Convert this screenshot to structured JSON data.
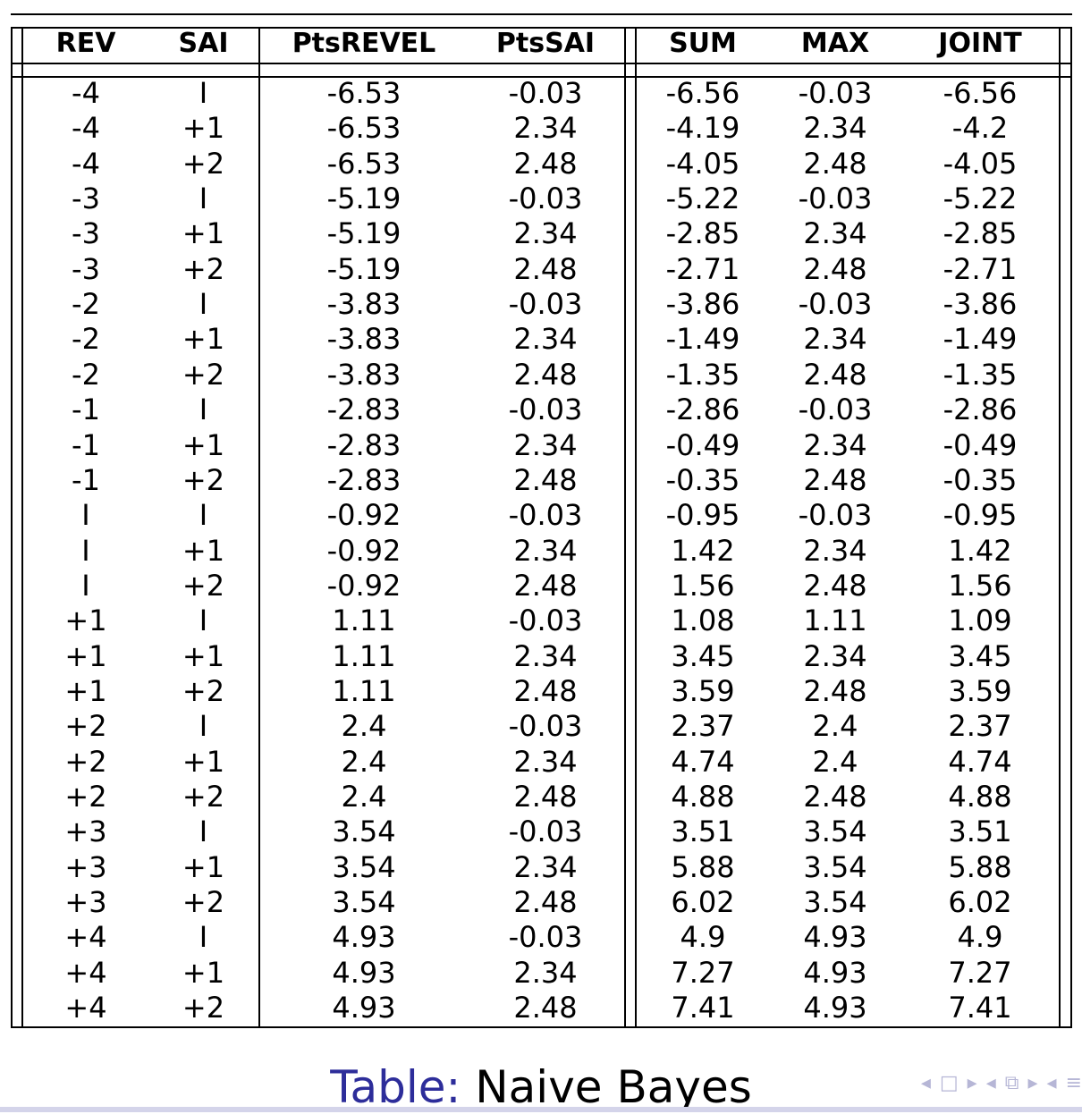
{
  "columns": [
    "REV",
    "SAI",
    "PtsREVEL",
    "PtsSAI",
    "SUM",
    "MAX",
    "JOINT"
  ],
  "rows": [
    [
      "-4",
      "I",
      "-6.53",
      "-0.03",
      "-6.56",
      "-0.03",
      "-6.56"
    ],
    [
      "-4",
      "+1",
      "-6.53",
      "2.34",
      "-4.19",
      "2.34",
      "-4.2"
    ],
    [
      "-4",
      "+2",
      "-6.53",
      "2.48",
      "-4.05",
      "2.48",
      "-4.05"
    ],
    [
      "-3",
      "I",
      "-5.19",
      "-0.03",
      "-5.22",
      "-0.03",
      "-5.22"
    ],
    [
      "-3",
      "+1",
      "-5.19",
      "2.34",
      "-2.85",
      "2.34",
      "-2.85"
    ],
    [
      "-3",
      "+2",
      "-5.19",
      "2.48",
      "-2.71",
      "2.48",
      "-2.71"
    ],
    [
      "-2",
      "I",
      "-3.83",
      "-0.03",
      "-3.86",
      "-0.03",
      "-3.86"
    ],
    [
      "-2",
      "+1",
      "-3.83",
      "2.34",
      "-1.49",
      "2.34",
      "-1.49"
    ],
    [
      "-2",
      "+2",
      "-3.83",
      "2.48",
      "-1.35",
      "2.48",
      "-1.35"
    ],
    [
      "-1",
      "I",
      "-2.83",
      "-0.03",
      "-2.86",
      "-0.03",
      "-2.86"
    ],
    [
      "-1",
      "+1",
      "-2.83",
      "2.34",
      "-0.49",
      "2.34",
      "-0.49"
    ],
    [
      "-1",
      "+2",
      "-2.83",
      "2.48",
      "-0.35",
      "2.48",
      "-0.35"
    ],
    [
      "I",
      "I",
      "-0.92",
      "-0.03",
      "-0.95",
      "-0.03",
      "-0.95"
    ],
    [
      "I",
      "+1",
      "-0.92",
      "2.34",
      "1.42",
      "2.34",
      "1.42"
    ],
    [
      "I",
      "+2",
      "-0.92",
      "2.48",
      "1.56",
      "2.48",
      "1.56"
    ],
    [
      "+1",
      "I",
      "1.11",
      "-0.03",
      "1.08",
      "1.11",
      "1.09"
    ],
    [
      "+1",
      "+1",
      "1.11",
      "2.34",
      "3.45",
      "2.34",
      "3.45"
    ],
    [
      "+1",
      "+2",
      "1.11",
      "2.48",
      "3.59",
      "2.48",
      "3.59"
    ],
    [
      "+2",
      "I",
      "2.4",
      "-0.03",
      "2.37",
      "2.4",
      "2.37"
    ],
    [
      "+2",
      "+1",
      "2.4",
      "2.34",
      "4.74",
      "2.4",
      "4.74"
    ],
    [
      "+2",
      "+2",
      "2.4",
      "2.48",
      "4.88",
      "2.48",
      "4.88"
    ],
    [
      "+3",
      "I",
      "3.54",
      "-0.03",
      "3.51",
      "3.54",
      "3.51"
    ],
    [
      "+3",
      "+1",
      "3.54",
      "2.34",
      "5.88",
      "3.54",
      "5.88"
    ],
    [
      "+3",
      "+2",
      "3.54",
      "2.48",
      "6.02",
      "3.54",
      "6.02"
    ],
    [
      "+4",
      "I",
      "4.93",
      "-0.03",
      "4.9",
      "4.93",
      "4.9"
    ],
    [
      "+4",
      "+1",
      "4.93",
      "2.34",
      "7.27",
      "4.93",
      "7.27"
    ],
    [
      "+4",
      "+2",
      "4.93",
      "2.48",
      "7.41",
      "4.93",
      "7.41"
    ]
  ],
  "caption": {
    "label": "Table:",
    "text": "Naive Bayes"
  },
  "colors": {
    "caption_label": "#2d2d9a",
    "nav_symbols": "#b6b6d6"
  },
  "nav": {
    "icons": [
      "nav-prev-arrow-icon",
      "nav-frame-icon",
      "nav-next-arrow-icon",
      "nav-prev-arrow-icon",
      "nav-section-icon",
      "nav-next-arrow-icon",
      "nav-prev-arrow-icon",
      "nav-menu-icon"
    ]
  }
}
